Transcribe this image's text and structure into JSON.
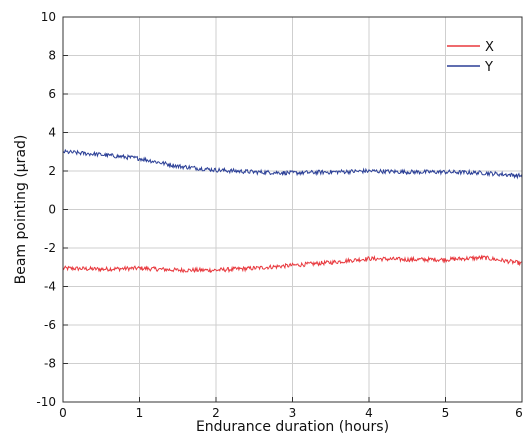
{
  "chart_data": {
    "type": "line",
    "title": "",
    "xlabel": "Endurance duration (hours)",
    "ylabel": "Beam pointing (µrad)",
    "xlim": [
      0,
      6
    ],
    "ylim": [
      -10,
      10
    ],
    "x_ticks": [
      0,
      1,
      2,
      3,
      4,
      5,
      6
    ],
    "y_ticks": [
      -10,
      -8,
      -6,
      -4,
      -2,
      0,
      2,
      4,
      6,
      8,
      10
    ],
    "grid": true,
    "legend_position": "top-right",
    "series": [
      {
        "name": "X",
        "color": "#e8383d",
        "x": [
          0,
          0.5,
          1,
          1.5,
          2,
          2.5,
          3,
          3.5,
          4,
          4.5,
          5,
          5.5,
          6
        ],
        "y": [
          -3.05,
          -3.1,
          -3.05,
          -3.15,
          -3.15,
          -3.05,
          -2.9,
          -2.75,
          -2.55,
          -2.6,
          -2.6,
          -2.5,
          -2.8
        ]
      },
      {
        "name": "Y",
        "color": "#2b3f96",
        "x": [
          0,
          0.5,
          1,
          1.5,
          2,
          2.5,
          3,
          3.5,
          4,
          4.5,
          5,
          5.5,
          6
        ],
        "y": [
          3.0,
          2.85,
          2.65,
          2.25,
          2.05,
          1.95,
          1.9,
          1.95,
          2.0,
          1.95,
          1.95,
          1.9,
          1.75
        ]
      }
    ]
  }
}
